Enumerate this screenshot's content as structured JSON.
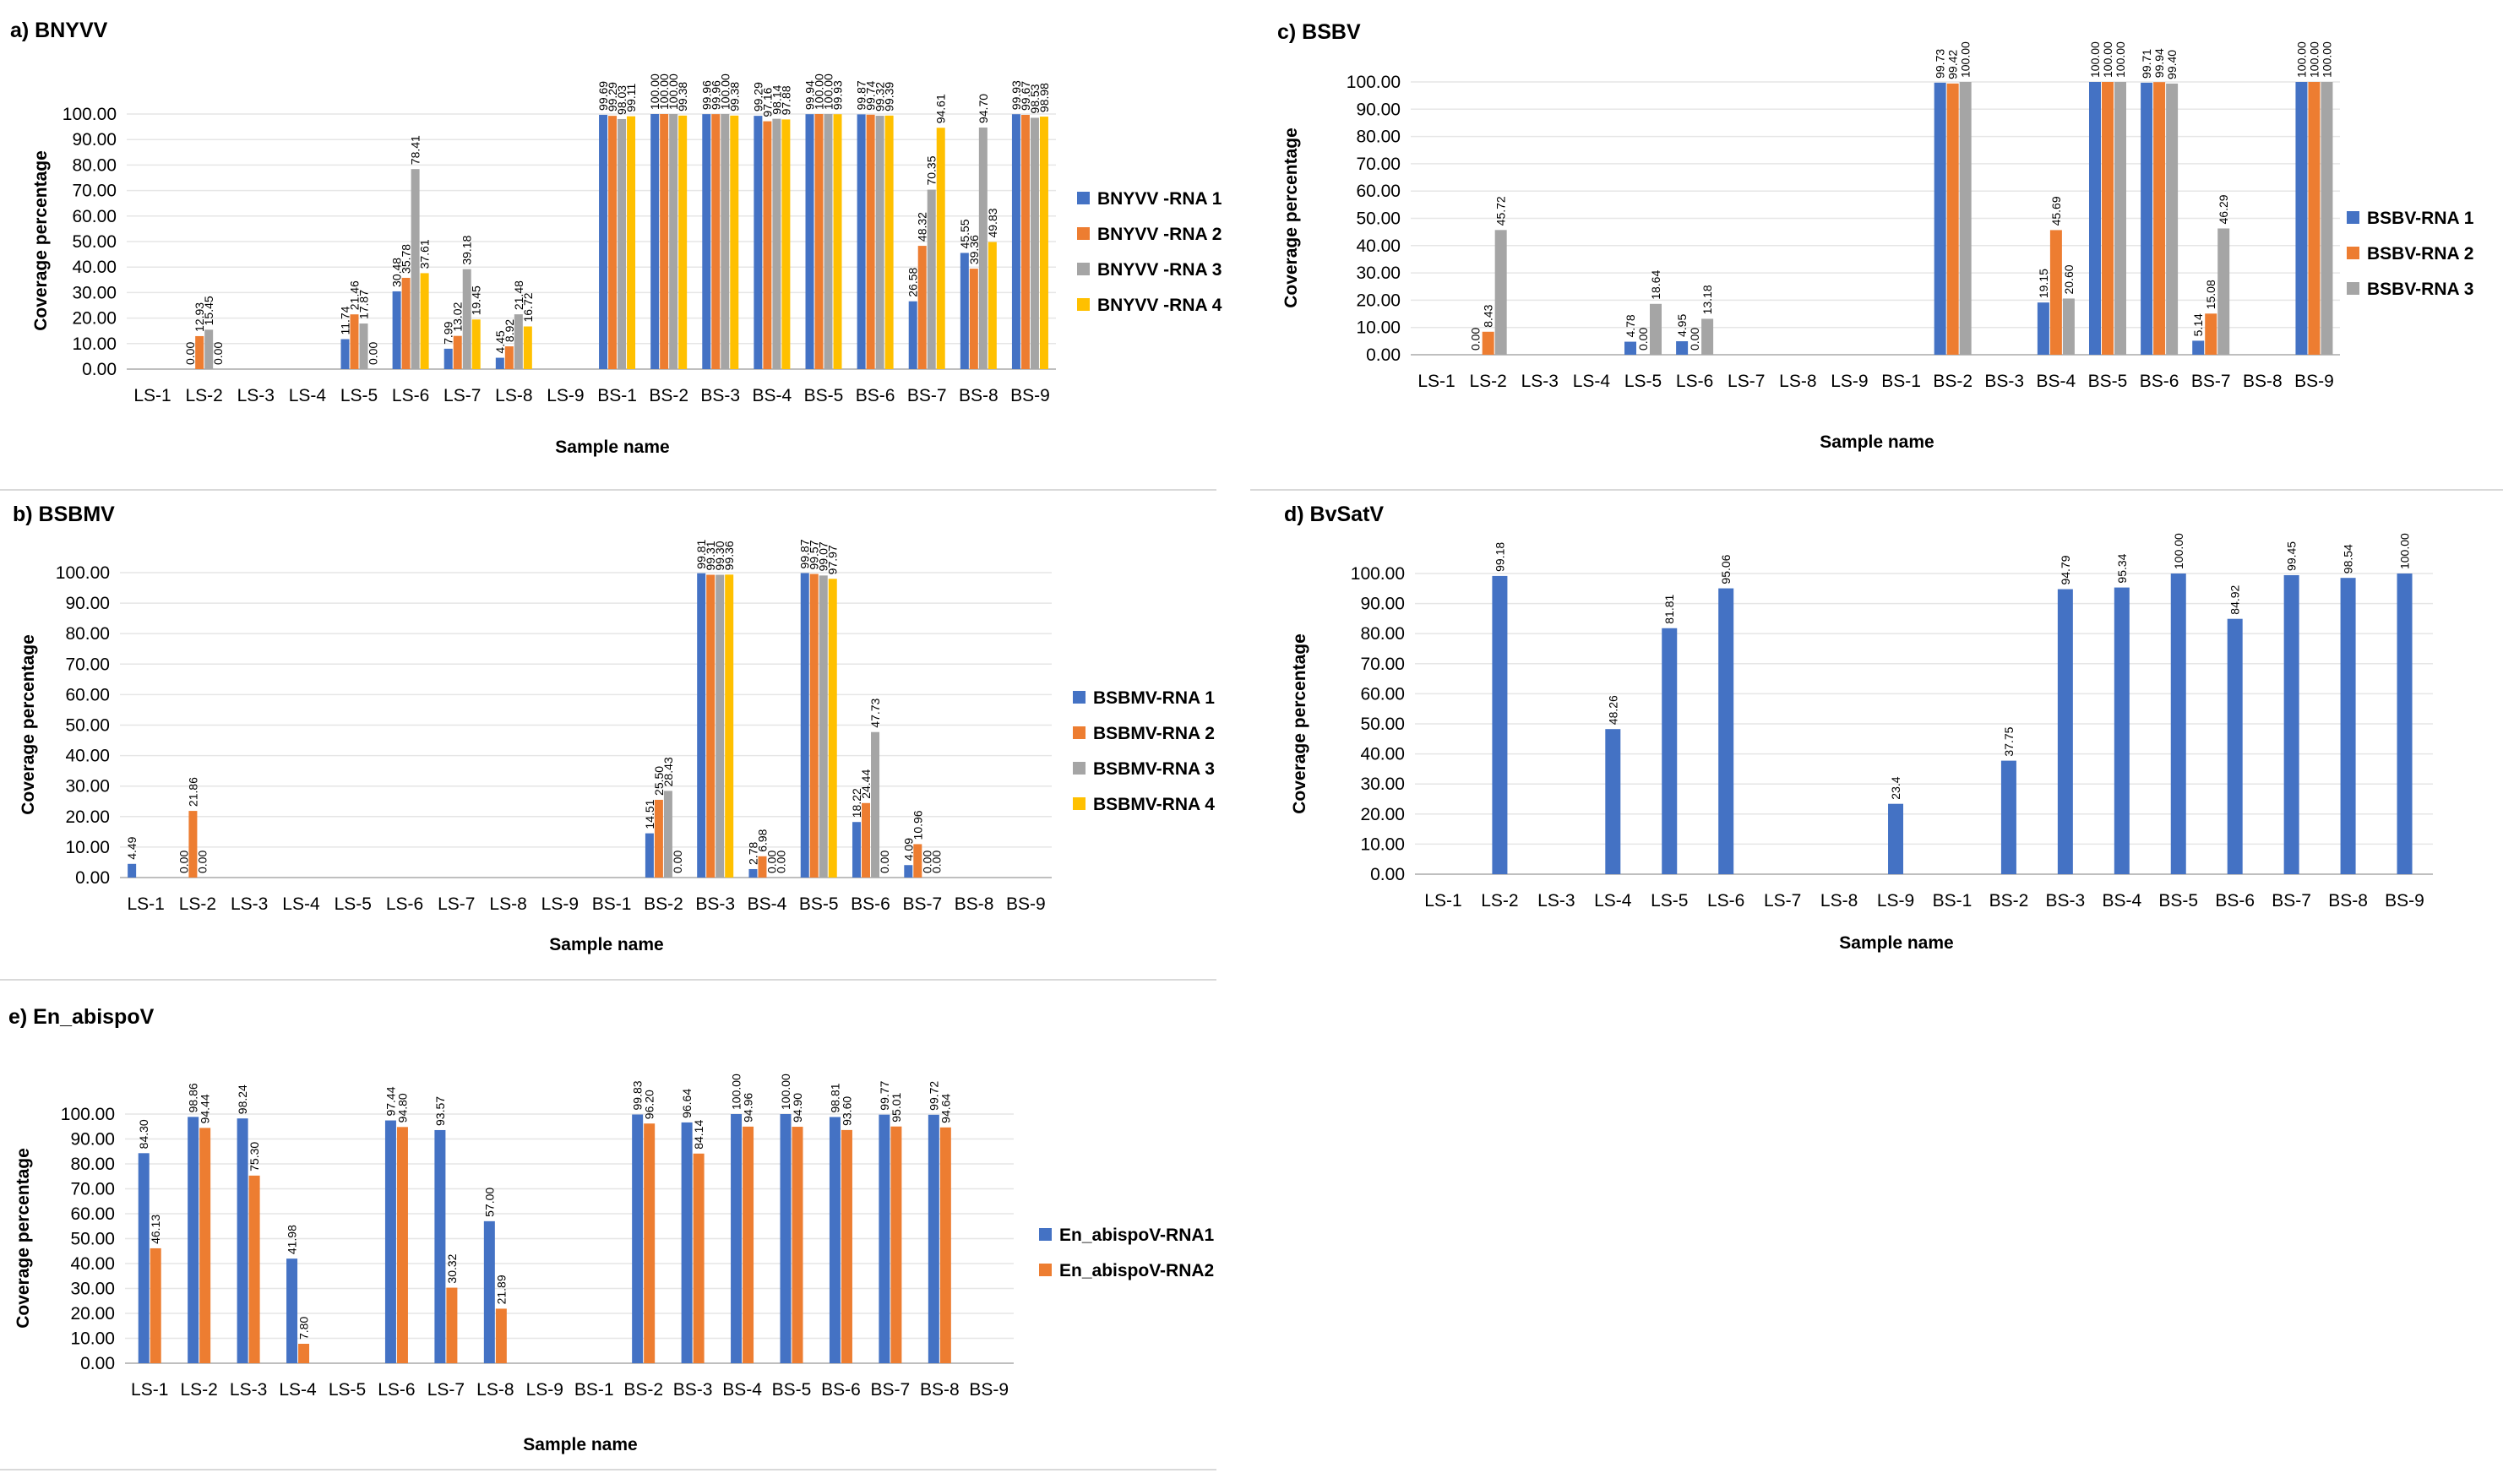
{
  "chart_data": [
    {
      "id": "a",
      "type": "bar",
      "title": "a) BNYVV",
      "xlabel": "Sample name",
      "ylabel": "Coverage percentage",
      "ylim": [
        0,
        100
      ],
      "yticks": [
        "0.00",
        "10.00",
        "20.00",
        "30.00",
        "40.00",
        "50.00",
        "60.00",
        "70.00",
        "80.00",
        "90.00",
        "100.00"
      ],
      "categories": [
        "LS-1",
        "LS-2",
        "LS-3",
        "LS-4",
        "LS-5",
        "LS-6",
        "LS-7",
        "LS-8",
        "LS-9",
        "BS-1",
        "BS-2",
        "BS-3",
        "BS-4",
        "BS-5",
        "BS-6",
        "BS-7",
        "BS-8",
        "BS-9"
      ],
      "legend_position": "right",
      "series": [
        {
          "name": "BNYVV -RNA 1",
          "color": "#4472C4",
          "values": [
            null,
            0,
            null,
            null,
            11.74,
            30.48,
            7.99,
            4.45,
            null,
            99.69,
            100,
            99.96,
            99.29,
            99.94,
            99.87,
            26.58,
            45.55,
            99.93
          ],
          "labels": [
            null,
            "0.00",
            null,
            null,
            "11.74",
            "30.48",
            "7.99",
            "4.45",
            null,
            "99.69",
            "100.00",
            "99.96",
            "99.29",
            "99.94",
            "99.87",
            "26.58",
            "45.55",
            "99.93"
          ]
        },
        {
          "name": "BNYVV -RNA 2",
          "color": "#ED7D31",
          "values": [
            null,
            12.93,
            null,
            null,
            21.46,
            35.78,
            13.02,
            8.92,
            null,
            99.29,
            100,
            99.96,
            97.16,
            100,
            99.74,
            48.32,
            39.36,
            99.67
          ],
          "labels": [
            null,
            "12.93",
            null,
            null,
            "21.46",
            "35.78",
            "13.02",
            "8.92",
            null,
            "99.29",
            "100.00",
            "99.96",
            "97.16",
            "100.00",
            "99.74",
            "48.32",
            "39.36",
            "99.67"
          ]
        },
        {
          "name": "BNYVV -RNA 3",
          "color": "#A5A5A5",
          "values": [
            null,
            15.45,
            null,
            null,
            17.87,
            78.41,
            39.18,
            21.48,
            null,
            98.03,
            100,
            100,
            98.14,
            100,
            99.32,
            70.35,
            94.7,
            98.53
          ],
          "labels": [
            null,
            "15.45",
            null,
            null,
            "17.87",
            "78.41",
            "39.18",
            "21.48",
            null,
            "98.03",
            "100.00",
            "100.00",
            "98.14",
            "100.00",
            "99.32",
            "70.35",
            "94.70",
            "98.53"
          ]
        },
        {
          "name": "BNYVV -RNA 4",
          "color": "#FFC000",
          "values": [
            null,
            0,
            null,
            null,
            0,
            37.61,
            19.45,
            16.72,
            null,
            99.11,
            99.38,
            99.38,
            97.88,
            99.93,
            99.39,
            94.61,
            49.83,
            98.98
          ],
          "labels": [
            null,
            "0.00",
            null,
            null,
            "0.00",
            "37.61",
            "19.45",
            "16.72",
            null,
            "99.11",
            "99.38",
            "99.38",
            "97.88",
            "99.93",
            "99.39",
            "94.61",
            "49.83",
            "98.98"
          ]
        }
      ]
    },
    {
      "id": "b",
      "type": "bar",
      "title": "b) BSBMV",
      "xlabel": "Sample name",
      "ylabel": "Coverage percentage",
      "ylim": [
        0,
        100
      ],
      "yticks": [
        "0.00",
        "10.00",
        "20.00",
        "30.00",
        "40.00",
        "50.00",
        "60.00",
        "70.00",
        "80.00",
        "90.00",
        "100.00"
      ],
      "categories": [
        "LS-1",
        "LS-2",
        "LS-3",
        "LS-4",
        "LS-5",
        "LS-6",
        "LS-7",
        "LS-8",
        "LS-9",
        "BS-1",
        "BS-2",
        "BS-3",
        "BS-4",
        "BS-5",
        "BS-6",
        "BS-7",
        "BS-8",
        "BS-9"
      ],
      "legend_position": "right",
      "series": [
        {
          "name": "BSBMV-RNA 1",
          "color": "#4472C4",
          "values": [
            4.49,
            0,
            null,
            null,
            null,
            null,
            null,
            null,
            null,
            null,
            14.51,
            99.81,
            2.78,
            99.87,
            18.22,
            4.09,
            null,
            null
          ],
          "labels": [
            "4.49",
            "0.00",
            null,
            null,
            null,
            null,
            null,
            null,
            null,
            null,
            "14.51",
            "99.81",
            "2.78",
            "99.87",
            "18.22",
            "4.09",
            null,
            null
          ]
        },
        {
          "name": "BSBMV-RNA 2",
          "color": "#ED7D31",
          "values": [
            null,
            21.86,
            null,
            null,
            null,
            null,
            null,
            null,
            null,
            null,
            25.5,
            99.31,
            6.98,
            99.57,
            24.44,
            10.96,
            null,
            null
          ],
          "labels": [
            null,
            "21.86",
            null,
            null,
            null,
            null,
            null,
            null,
            null,
            null,
            "25.50",
            "99.31",
            "6.98",
            "99.57",
            "24.44",
            "10.96",
            null,
            null
          ]
        },
        {
          "name": "BSBMV-RNA 3",
          "color": "#A5A5A5",
          "values": [
            null,
            0,
            null,
            null,
            null,
            null,
            null,
            null,
            null,
            null,
            28.43,
            99.3,
            0,
            99.07,
            47.73,
            0,
            null,
            null
          ],
          "labels": [
            null,
            "0.00",
            null,
            null,
            null,
            null,
            null,
            null,
            null,
            null,
            "28.43",
            "99.30",
            "0.00",
            "99.07",
            "47.73",
            "0.00",
            null,
            null
          ]
        },
        {
          "name": "BSBMV-RNA 4",
          "color": "#FFC000",
          "values": [
            null,
            null,
            null,
            null,
            null,
            null,
            null,
            null,
            null,
            null,
            0,
            99.36,
            0,
            97.97,
            0,
            0,
            null,
            null
          ],
          "labels": [
            null,
            null,
            null,
            null,
            null,
            null,
            null,
            null,
            null,
            null,
            "0.00",
            "99.36",
            "0.00",
            "97.97",
            "0.00",
            "0.00",
            null,
            null
          ]
        }
      ]
    },
    {
      "id": "c",
      "type": "bar",
      "title": "c) BSBV",
      "xlabel": "Sample name",
      "ylabel": "Coverage percentage",
      "ylim": [
        0,
        100
      ],
      "yticks": [
        "0.00",
        "10.00",
        "20.00",
        "30.00",
        "40.00",
        "50.00",
        "60.00",
        "70.00",
        "80.00",
        "90.00",
        "100.00"
      ],
      "categories": [
        "LS-1",
        "LS-2",
        "LS-3",
        "LS-4",
        "LS-5",
        "LS-6",
        "LS-7",
        "LS-8",
        "LS-9",
        "BS-1",
        "BS-2",
        "BS-3",
        "BS-4",
        "BS-5",
        "BS-6",
        "BS-7",
        "BS-8",
        "BS-9"
      ],
      "legend_position": "right",
      "series": [
        {
          "name": "BSBV-RNA 1",
          "color": "#4472C4",
          "values": [
            null,
            0,
            null,
            null,
            4.78,
            4.95,
            null,
            null,
            null,
            null,
            99.73,
            null,
            19.15,
            100,
            99.71,
            5.14,
            null,
            100
          ],
          "labels": [
            null,
            "0.00",
            null,
            null,
            "4.78",
            "4.95",
            null,
            null,
            null,
            null,
            "99.73",
            null,
            "19.15",
            "100.00",
            "99.71",
            "5.14",
            null,
            "100.00"
          ]
        },
        {
          "name": "BSBV-RNA 2",
          "color": "#ED7D31",
          "values": [
            null,
            8.43,
            null,
            null,
            0,
            0,
            null,
            null,
            null,
            null,
            99.42,
            null,
            45.69,
            100,
            99.94,
            15.08,
            null,
            100
          ],
          "labels": [
            null,
            "8.43",
            null,
            null,
            "0.00",
            "0.00",
            null,
            null,
            null,
            null,
            "99.42",
            null,
            "45.69",
            "100.00",
            "99.94",
            "15.08",
            null,
            "100.00"
          ]
        },
        {
          "name": "BSBV-RNA 3",
          "color": "#A5A5A5",
          "values": [
            null,
            45.72,
            null,
            null,
            18.64,
            13.18,
            null,
            null,
            null,
            null,
            100,
            null,
            20.6,
            100,
            99.4,
            46.29,
            null,
            100
          ],
          "labels": [
            null,
            "45.72",
            null,
            null,
            "18.64",
            "13.18",
            null,
            null,
            null,
            null,
            "100.00",
            null,
            "20.60",
            "100.00",
            "99.40",
            "46.29",
            null,
            "100.00"
          ]
        }
      ]
    },
    {
      "id": "d",
      "type": "bar",
      "title": "d) BvSatV",
      "xlabel": "Sample name",
      "ylabel": "Coverage percentage",
      "ylim": [
        0,
        100
      ],
      "yticks": [
        "0.00",
        "10.00",
        "20.00",
        "30.00",
        "40.00",
        "50.00",
        "60.00",
        "70.00",
        "80.00",
        "90.00",
        "100.00"
      ],
      "categories": [
        "LS-1",
        "LS-2",
        "LS-3",
        "LS-4",
        "LS-5",
        "LS-6",
        "LS-7",
        "LS-8",
        "LS-9",
        "BS-1",
        "BS-2",
        "BS-3",
        "BS-4",
        "BS-5",
        "BS-6",
        "BS-7",
        "BS-8",
        "BS-9"
      ],
      "legend_position": "none",
      "series": [
        {
          "name": "BvSatV",
          "color": "#4472C4",
          "values": [
            null,
            99.18,
            null,
            48.26,
            81.81,
            95.06,
            null,
            null,
            23.4,
            null,
            37.75,
            94.79,
            95.34,
            100,
            84.92,
            99.45,
            98.54,
            100
          ],
          "labels": [
            null,
            "99.18",
            null,
            "48.26",
            "81.81",
            "95.06",
            null,
            null,
            "23.4",
            null,
            "37.75",
            "94.79",
            "95.34",
            "100.00",
            "84.92",
            "99.45",
            "98.54",
            "100.00"
          ]
        }
      ]
    },
    {
      "id": "e",
      "type": "bar",
      "title": "e) En_abispoV",
      "xlabel": "Sample name",
      "ylabel": "Coverage percentage",
      "ylim": [
        0,
        100
      ],
      "yticks": [
        "0.00",
        "10.00",
        "20.00",
        "30.00",
        "40.00",
        "50.00",
        "60.00",
        "70.00",
        "80.00",
        "90.00",
        "100.00"
      ],
      "categories": [
        "LS-1",
        "LS-2",
        "LS-3",
        "LS-4",
        "LS-5",
        "LS-6",
        "LS-7",
        "LS-8",
        "LS-9",
        "BS-1",
        "BS-2",
        "BS-3",
        "BS-4",
        "BS-5",
        "BS-6",
        "BS-7",
        "BS-8",
        "BS-9"
      ],
      "legend_position": "right",
      "series": [
        {
          "name": "En_abispoV-RNA1",
          "color": "#4472C4",
          "values": [
            84.3,
            98.86,
            98.24,
            41.98,
            null,
            97.44,
            93.57,
            57,
            null,
            null,
            99.83,
            96.64,
            100,
            100,
            98.81,
            99.77,
            99.72,
            null
          ],
          "labels": [
            "84.30",
            "98.86",
            "98.24",
            "41.98",
            null,
            "97.44",
            "93.57",
            "57.00",
            null,
            null,
            "99.83",
            "96.64",
            "100.00",
            "100.00",
            "98.81",
            "99.77",
            "99.72",
            null
          ]
        },
        {
          "name": "En_abispoV-RNA2",
          "color": "#ED7D31",
          "values": [
            46.13,
            94.44,
            75.3,
            7.8,
            null,
            94.8,
            30.32,
            21.89,
            null,
            null,
            96.2,
            84.14,
            94.96,
            94.9,
            93.6,
            95.01,
            94.64,
            null
          ],
          "labels": [
            "46.13",
            "94.44",
            "75.30",
            "7.80",
            null,
            "94.80",
            "30.32",
            "21.89",
            null,
            null,
            "96.20",
            "84.14",
            "94.96",
            "94.90",
            "93.60",
            "95.01",
            "94.64",
            null
          ]
        }
      ]
    }
  ]
}
